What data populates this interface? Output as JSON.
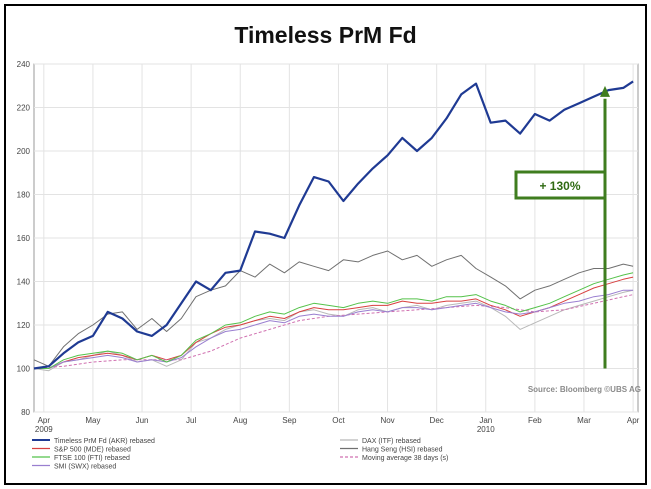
{
  "chart_data": {
    "type": "line",
    "title": "Timeless PrM Fd",
    "source": "Source: Bloomberg ©UBS AG",
    "annotation": "+ 130%",
    "ylim": [
      80,
      240
    ],
    "yticks": [
      80,
      100,
      120,
      140,
      160,
      180,
      200,
      220,
      240
    ],
    "ytick_labels": [
      "80",
      "100",
      "120",
      "140",
      "160",
      "180",
      "200",
      "220",
      "240"
    ],
    "xlim": [
      0,
      12.3
    ],
    "month_ticks": [
      {
        "x": 0.2,
        "label": "Apr",
        "year": "2009"
      },
      {
        "x": 1.2,
        "label": "May",
        "year": ""
      },
      {
        "x": 2.2,
        "label": "Jun",
        "year": ""
      },
      {
        "x": 3.2,
        "label": "Jul",
        "year": ""
      },
      {
        "x": 4.2,
        "label": "Aug",
        "year": ""
      },
      {
        "x": 5.2,
        "label": "Sep",
        "year": ""
      },
      {
        "x": 6.2,
        "label": "Oct",
        "year": ""
      },
      {
        "x": 7.2,
        "label": "Nov",
        "year": ""
      },
      {
        "x": 8.2,
        "label": "Dec",
        "year": ""
      },
      {
        "x": 9.2,
        "label": "Jan",
        "year": "2010"
      },
      {
        "x": 10.2,
        "label": "Feb",
        "year": ""
      },
      {
        "x": 11.2,
        "label": "Mar",
        "year": ""
      },
      {
        "x": 12.2,
        "label": "Apr",
        "year": ""
      }
    ],
    "grid": true,
    "legend_position": "bottom",
    "legend": [
      {
        "label": "Timeless PrM Fd (AKR) rebased",
        "color": "#1f3a93",
        "dash": false
      },
      {
        "label": "DAX (ITF) rebased",
        "color": "#b8b8b8",
        "dash": false
      },
      {
        "label": "S&P 500 (MDE) rebased",
        "color": "#d84040",
        "dash": false
      },
      {
        "label": "Hang Seng (HSI) rebased",
        "color": "#707070",
        "dash": false
      },
      {
        "label": "FTSE 100 (FTI) rebased",
        "color": "#55c24a",
        "dash": false
      },
      {
        "label": "Moving average 38 days (s)",
        "color": "#d070b0",
        "dash": true
      },
      {
        "label": "SMI (SWX) rebased",
        "color": "#9a7fd0",
        "dash": false
      }
    ],
    "series": [
      {
        "name": "Timeless PrM Fd (AKR) rebased",
        "color": "#1f3a93",
        "width": 2.2,
        "x": [
          0,
          0.3,
          0.6,
          0.9,
          1.2,
          1.5,
          1.8,
          2.1,
          2.4,
          2.7,
          3,
          3.3,
          3.6,
          3.9,
          4.2,
          4.5,
          4.8,
          5.1,
          5.4,
          5.7,
          6,
          6.3,
          6.6,
          6.9,
          7.2,
          7.5,
          7.8,
          8.1,
          8.4,
          8.7,
          9,
          9.3,
          9.6,
          9.9,
          10.2,
          10.5,
          10.8,
          11.1,
          11.4,
          11.7,
          12,
          12.2
        ],
        "y": [
          100,
          101,
          107,
          112,
          115,
          126,
          123,
          117,
          115,
          120,
          130,
          140,
          136,
          144,
          145,
          163,
          162,
          160,
          175,
          188,
          186,
          177,
          185,
          192,
          198,
          206,
          200,
          206,
          215,
          226,
          231,
          213,
          214,
          208,
          217,
          214,
          219,
          222,
          225,
          228,
          229,
          232
        ]
      },
      {
        "name": "DAX (ITF) rebased",
        "color": "#b8b8b8",
        "width": 1,
        "x": [
          0,
          0.3,
          0.6,
          0.9,
          1.2,
          1.5,
          1.8,
          2.1,
          2.4,
          2.7,
          3,
          3.3,
          3.6,
          3.9,
          4.2,
          4.5,
          4.8,
          5.1,
          5.4,
          5.7,
          6,
          6.3,
          6.6,
          6.9,
          7.2,
          7.5,
          7.8,
          8.1,
          8.4,
          8.7,
          9,
          9.3,
          9.6,
          9.9,
          10.2,
          10.5,
          10.8,
          11.1,
          11.4,
          11.7,
          12,
          12.2
        ],
        "y": [
          100,
          99,
          103,
          104,
          106,
          108,
          106,
          103,
          104,
          101,
          104,
          112,
          114,
          118,
          120,
          122,
          123,
          122,
          126,
          127,
          125,
          124,
          127,
          128,
          126,
          128,
          129,
          127,
          129,
          130,
          131,
          128,
          124,
          118,
          121,
          124,
          127,
          129,
          131,
          133,
          135,
          136
        ]
      },
      {
        "name": "Hang Seng (HSI) rebased",
        "color": "#707070",
        "width": 1,
        "x": [
          0,
          0.3,
          0.6,
          0.9,
          1.2,
          1.5,
          1.8,
          2.1,
          2.4,
          2.7,
          3,
          3.3,
          3.6,
          3.9,
          4.2,
          4.5,
          4.8,
          5.1,
          5.4,
          5.7,
          6,
          6.3,
          6.6,
          6.9,
          7.2,
          7.5,
          7.8,
          8.1,
          8.4,
          8.7,
          9,
          9.3,
          9.6,
          9.9,
          10.2,
          10.5,
          10.8,
          11.1,
          11.4,
          11.7,
          12,
          12.2
        ],
        "y": [
          104,
          101,
          110,
          116,
          120,
          125,
          126,
          118,
          123,
          117,
          123,
          133,
          136,
          138,
          145,
          142,
          148,
          144,
          149,
          147,
          145,
          150,
          149,
          152,
          154,
          150,
          152,
          147,
          150,
          152,
          146,
          142,
          138,
          132,
          136,
          138,
          141,
          144,
          146,
          146,
          148,
          147
        ]
      },
      {
        "name": "S&P 500 (MDE) rebased",
        "color": "#d84040",
        "width": 1,
        "x": [
          0,
          0.3,
          0.6,
          0.9,
          1.2,
          1.5,
          1.8,
          2.1,
          2.4,
          2.7,
          3,
          3.3,
          3.6,
          3.9,
          4.2,
          4.5,
          4.8,
          5.1,
          5.4,
          5.7,
          6,
          6.3,
          6.6,
          6.9,
          7.2,
          7.5,
          7.8,
          8.1,
          8.4,
          8.7,
          9,
          9.3,
          9.6,
          9.9,
          10.2,
          10.5,
          10.8,
          11.1,
          11.4,
          11.7,
          12,
          12.2
        ],
        "y": [
          100,
          100,
          103,
          105,
          106,
          107,
          106,
          104,
          106,
          104,
          106,
          112,
          116,
          119,
          120,
          122,
          124,
          123,
          126,
          128,
          127,
          127,
          128,
          129,
          129,
          131,
          130,
          130,
          131,
          131,
          132,
          129,
          127,
          124,
          126,
          128,
          131,
          134,
          137,
          139,
          141,
          142
        ]
      },
      {
        "name": "FTSE 100 (FTI) rebased",
        "color": "#55c24a",
        "width": 1,
        "x": [
          0,
          0.3,
          0.6,
          0.9,
          1.2,
          1.5,
          1.8,
          2.1,
          2.4,
          2.7,
          3,
          3.3,
          3.6,
          3.9,
          4.2,
          4.5,
          4.8,
          5.1,
          5.4,
          5.7,
          6,
          6.3,
          6.6,
          6.9,
          7.2,
          7.5,
          7.8,
          8.1,
          8.4,
          8.7,
          9,
          9.3,
          9.6,
          9.9,
          10.2,
          10.5,
          10.8,
          11.1,
          11.4,
          11.7,
          12,
          12.2
        ],
        "y": [
          100,
          100,
          104,
          106,
          107,
          108,
          107,
          104,
          106,
          103,
          106,
          113,
          116,
          120,
          121,
          124,
          126,
          125,
          128,
          130,
          129,
          128,
          130,
          131,
          130,
          132,
          132,
          131,
          133,
          133,
          134,
          131,
          129,
          126,
          128,
          130,
          133,
          136,
          139,
          141,
          143,
          144
        ]
      },
      {
        "name": "SMI (SWX) rebased",
        "color": "#9a7fd0",
        "width": 1,
        "x": [
          0,
          0.3,
          0.6,
          0.9,
          1.2,
          1.5,
          1.8,
          2.1,
          2.4,
          2.7,
          3,
          3.3,
          3.6,
          3.9,
          4.2,
          4.5,
          4.8,
          5.1,
          5.4,
          5.7,
          6,
          6.3,
          6.6,
          6.9,
          7.2,
          7.5,
          7.8,
          8.1,
          8.4,
          8.7,
          9,
          9.3,
          9.6,
          9.9,
          10.2,
          10.5,
          10.8,
          11.1,
          11.4,
          11.7,
          12,
          12.2
        ],
        "y": [
          100,
          100,
          103,
          104,
          105,
          106,
          105,
          103,
          104,
          103,
          105,
          110,
          114,
          117,
          118,
          120,
          122,
          121,
          124,
          125,
          124,
          124,
          126,
          127,
          126,
          128,
          128,
          127,
          128,
          129,
          130,
          128,
          126,
          125,
          126,
          128,
          130,
          131,
          133,
          134,
          136,
          136
        ]
      },
      {
        "name": "Moving average 38 days (s)",
        "color": "#d070b0",
        "width": 1,
        "dash": true,
        "x": [
          0,
          0.6,
          1.2,
          1.8,
          2.4,
          3,
          3.6,
          4.2,
          4.8,
          5.4,
          6,
          6.6,
          7.2,
          7.8,
          8.4,
          9,
          9.6,
          10.2,
          10.8,
          11.4,
          12,
          12.2
        ],
        "y": [
          100,
          101,
          103,
          104,
          104,
          104,
          108,
          114,
          118,
          122,
          124,
          125,
          126,
          127,
          128,
          129,
          128,
          126,
          127,
          130,
          133,
          134
        ]
      }
    ]
  }
}
